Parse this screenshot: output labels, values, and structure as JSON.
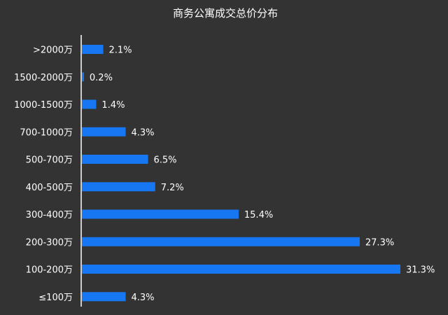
{
  "chart_data": {
    "type": "bar",
    "orientation": "horizontal",
    "title": "商务公寓成交总价分布",
    "categories": [
      ">2000万",
      "1500-2000万",
      "1000-1500万",
      "700-1000万",
      "500-700万",
      "400-500万",
      "300-400万",
      "200-300万",
      "100-200万",
      "≤100万"
    ],
    "values": [
      2.1,
      0.2,
      1.4,
      4.3,
      6.5,
      7.2,
      15.4,
      27.3,
      31.3,
      4.3
    ],
    "value_labels": [
      "2.1%",
      "0.2%",
      "1.4%",
      "4.3%",
      "6.5%",
      "7.2%",
      "15.4%",
      "27.3%",
      "31.3%",
      "4.3%"
    ],
    "xlabel": "",
    "ylabel": "",
    "xlim": [
      0,
      31.3
    ],
    "grid": false,
    "legend": "none"
  },
  "colors": {
    "background": "#333333",
    "bar": "#1777f2",
    "text": "#ffffff",
    "axis": "#ffffff"
  }
}
